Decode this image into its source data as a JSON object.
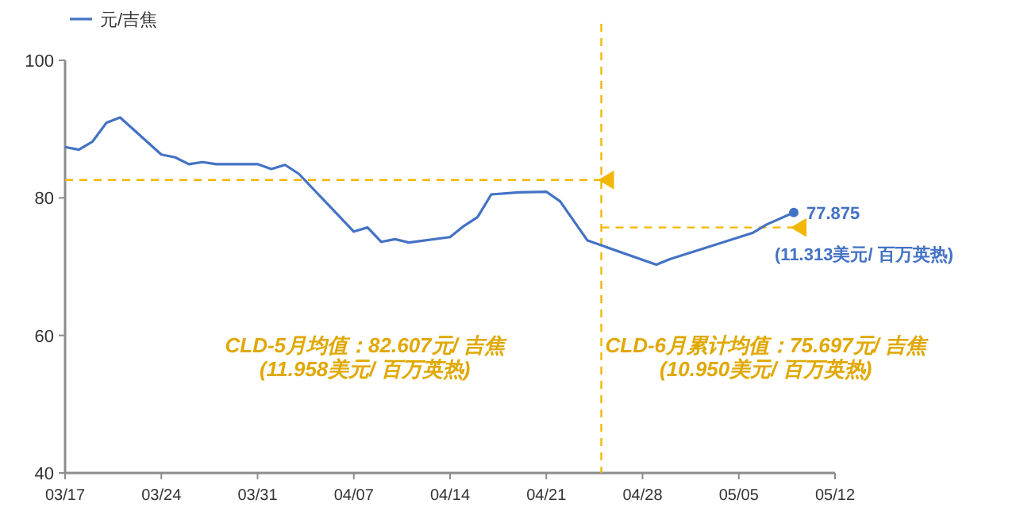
{
  "chart_data": {
    "type": "line",
    "x": [
      "--03-17",
      "--03-18",
      "--03-19",
      "--03-20",
      "--03-21",
      "--03-24",
      "--03-25",
      "--03-26",
      "--03-27",
      "--03-28",
      "--03-31",
      "--04-01",
      "--04-02",
      "--04-03",
      "--04-07",
      "--04-08",
      "--04-09",
      "--04-10",
      "--04-11",
      "--04-14",
      "--04-15",
      "--04-16",
      "--04-17",
      "--04-19",
      "--04-21",
      "--04-22",
      "--04-24",
      "--04-29",
      "--04-30",
      "--05-06",
      "--05-07",
      "--05-09"
    ],
    "series": [
      {
        "name": "元/吉焦",
        "color": "#4472c4",
        "values": [
          87.4,
          87.0,
          88.2,
          90.9,
          91.7,
          86.3,
          85.9,
          84.9,
          85.2,
          84.9,
          84.9,
          84.2,
          84.8,
          83.5,
          75.1,
          75.7,
          73.6,
          74.0,
          73.5,
          74.3,
          75.9,
          77.2,
          80.5,
          80.8,
          80.9,
          79.5,
          73.8,
          70.3,
          71.1,
          74.9,
          76.1,
          77.875
        ],
        "value_labels": [
          null,
          null,
          null,
          null,
          null,
          null,
          null,
          null,
          null,
          null,
          null,
          null,
          null,
          null,
          null,
          null,
          null,
          null,
          null,
          null,
          null,
          null,
          null,
          null,
          null,
          null,
          null,
          null,
          null,
          null,
          null,
          "77.875"
        ]
      }
    ],
    "xlim": [
      "--03-17",
      "--05-12"
    ],
    "xticks": [
      {
        "value": "--03-17",
        "label": "03/17"
      },
      {
        "value": "--03-24",
        "label": "03/24"
      },
      {
        "value": "--03-31",
        "label": "03/31"
      },
      {
        "value": "--04-07",
        "label": "04/07"
      },
      {
        "value": "--04-14",
        "label": "04/14"
      },
      {
        "value": "--04-21",
        "label": "04/21"
      },
      {
        "value": "--04-28",
        "label": "04/28"
      },
      {
        "value": "--05-05",
        "label": "05/05"
      },
      {
        "value": "--05-12",
        "label": "05/12"
      }
    ],
    "ylim": [
      40,
      100
    ],
    "yticks": [
      40,
      60,
      80,
      100
    ],
    "ref_lines": [
      {
        "axis": "x",
        "value": "--04-25",
        "color": "#f2b705",
        "line_style": "dashed"
      },
      {
        "axis": "y",
        "value": 82.607,
        "color": "#f2b705",
        "line_style": "dashed"
      },
      {
        "axis": "y",
        "value": 75.697,
        "color": "#f2b705",
        "line_style": "dashed"
      }
    ],
    "annotations": [
      {
        "text": "(11.313美元/ 百万英热)",
        "x": "--05-09",
        "y": 77.875
      },
      "CLD-5月均值：82.607元/ 吉焦\n(11.958美元/ 百万英热)",
      "CLD-6月累计均值：75.697元/ 吉焦\n(10.950美元/ 百万英热)"
    ],
    "legend": "top left",
    "grid": false,
    "line_style": "solid"
  }
}
